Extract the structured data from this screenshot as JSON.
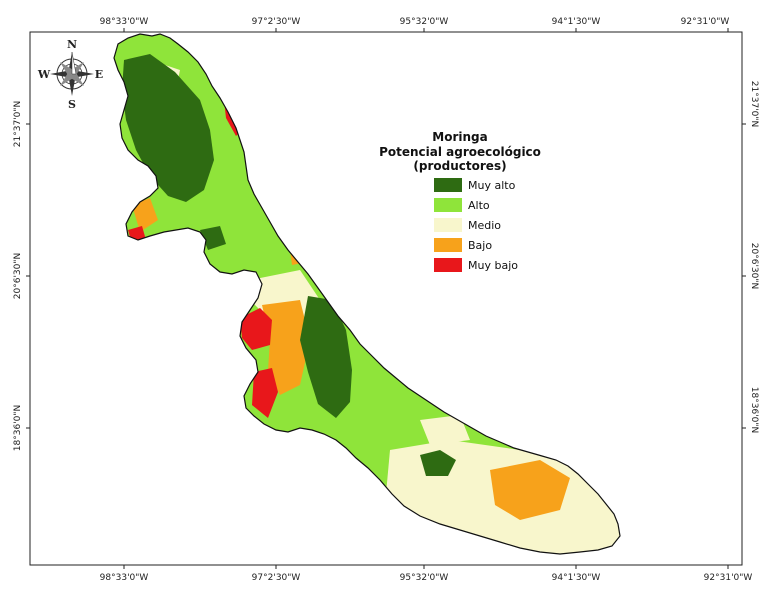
{
  "map": {
    "compass": {
      "north": "N",
      "south": "S",
      "east": "E",
      "west": "W"
    },
    "longitude_ticks": [
      "98°33'0\"W",
      "97°2'30\"W",
      "95°32'0\"W",
      "94°1'30\"W",
      "92°31'0\"W"
    ],
    "latitude_ticks": [
      "21°37'0\"N",
      "20°6'30\"N",
      "18°36'0\"N"
    ],
    "legend": {
      "title_line1": "Moringa",
      "title_line2": "Potencial agroecológico",
      "title_line3": "(productores)",
      "classes": [
        {
          "label": "Muy alto",
          "color": "#2e6b12"
        },
        {
          "label": "Alto",
          "color": "#8fe43a"
        },
        {
          "label": "Medio",
          "color": "#f8f6cc"
        },
        {
          "label": "Bajo",
          "color": "#f7a21b"
        },
        {
          "label": "Muy bajo",
          "color": "#e8171b"
        }
      ]
    }
  }
}
